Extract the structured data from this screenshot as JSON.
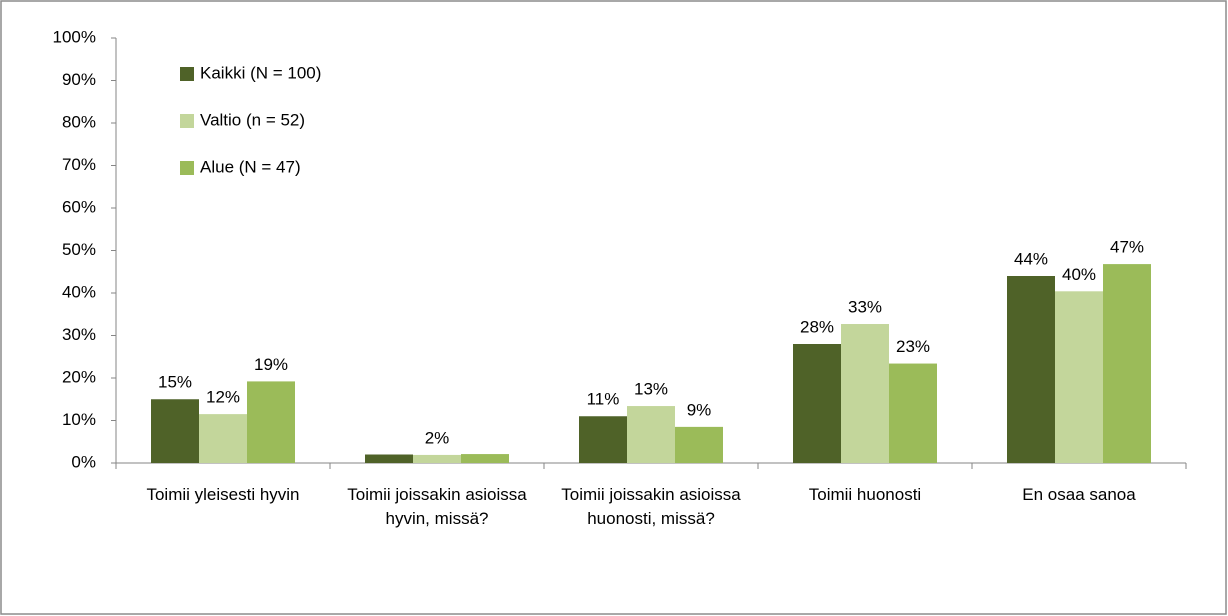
{
  "chart_data": {
    "type": "bar",
    "categories": [
      "Toimii yleisesti hyvin",
      "Toimii joissakin asioissa hyvin, missä?",
      "Toimii joissakin asioissa huonosti, missä?",
      "Toimii huonosti",
      "En osaa sanoa"
    ],
    "series": [
      {
        "name": "Kaikki (N = 100)",
        "color": "#4f6228",
        "values": [
          15,
          2,
          11,
          28,
          44
        ],
        "value_labels": [
          "15%",
          null,
          "11%",
          "28%",
          "44%"
        ]
      },
      {
        "name": "Valtio (n = 52)",
        "color": "#c3d69b",
        "values": [
          11.5,
          1.9,
          13.4,
          32.7,
          40.4
        ],
        "value_labels": [
          "12%",
          "2%",
          "13%",
          "33%",
          "40%"
        ]
      },
      {
        "name": "Alue (N = 47)",
        "color": "#9bbb59",
        "values": [
          19.2,
          2.1,
          8.5,
          23.4,
          46.8
        ],
        "value_labels": [
          "19%",
          null,
          "9%",
          "23%",
          "47%"
        ]
      }
    ],
    "ylim": [
      0,
      100
    ],
    "yticks": [
      {
        "value": 0,
        "label": "0%"
      },
      {
        "value": 10,
        "label": "10%"
      },
      {
        "value": 20,
        "label": "20%"
      },
      {
        "value": 30,
        "label": "30%"
      },
      {
        "value": 40,
        "label": "40%"
      },
      {
        "value": 50,
        "label": "50%"
      },
      {
        "value": 60,
        "label": "60%"
      },
      {
        "value": 70,
        "label": "70%"
      },
      {
        "value": 80,
        "label": "80%"
      },
      {
        "value": 90,
        "label": "90%"
      },
      {
        "value": 100,
        "label": "100%"
      }
    ],
    "grid": false,
    "legend": "top-left"
  }
}
